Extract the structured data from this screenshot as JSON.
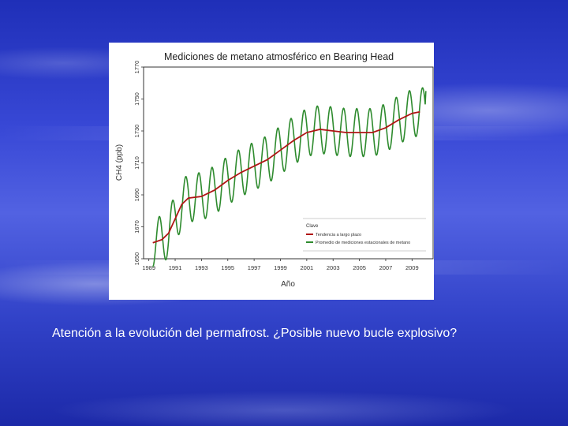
{
  "slide": {
    "caption": "Atención a la evolución del permafrost. ¿Posible nuevo bucle explosivo?"
  },
  "chart_data": {
    "type": "line",
    "title": "Mediciones de metano atmosférico en Bearing Head",
    "xlabel": "Año",
    "ylabel": "CH4 (ppb)",
    "xlim": [
      1988.6,
      2010.6
    ],
    "ylim": [
      1650,
      1770
    ],
    "x_ticks": [
      1989,
      1991,
      1993,
      1995,
      1997,
      1999,
      2001,
      2003,
      2005,
      2007,
      2009
    ],
    "y_ticks": [
      1650,
      1670,
      1690,
      1710,
      1730,
      1750,
      1770
    ],
    "legend": {
      "title": "Clave",
      "position": "bottom-right",
      "entries": [
        {
          "label": "Tendencia a largo plazo",
          "color": "#b01515"
        },
        {
          "label": "Promedio de mediciones estacionales de metano",
          "color": "#2e8b2e"
        }
      ]
    },
    "series": [
      {
        "name": "Tendencia a largo plazo",
        "color": "#b01515",
        "x": [
          1989.3,
          1990,
          1990.5,
          1991,
          1991.5,
          1992,
          1993,
          1994,
          1995,
          1996,
          1997,
          1998,
          1999,
          2000,
          2001,
          2002,
          2003,
          2004,
          2005,
          2006,
          2007,
          2008,
          2009,
          2009.6
        ],
        "values": [
          1660,
          1662,
          1666,
          1675,
          1684,
          1688,
          1689,
          1693,
          1699,
          1704,
          1708,
          1712,
          1718,
          1724,
          1729,
          1731,
          1730,
          1729,
          1729,
          1729,
          1732,
          1737,
          1741,
          1742
        ]
      },
      {
        "name": "Promedio de mediciones estacionales de metano",
        "color": "#2e8b2e",
        "amplitude": 15,
        "cycles_per_year": 1,
        "x_start": 1989.3,
        "x_end": 2010.0,
        "base_trend": "Tendencia a largo plazo",
        "final_value": 1755
      }
    ]
  }
}
